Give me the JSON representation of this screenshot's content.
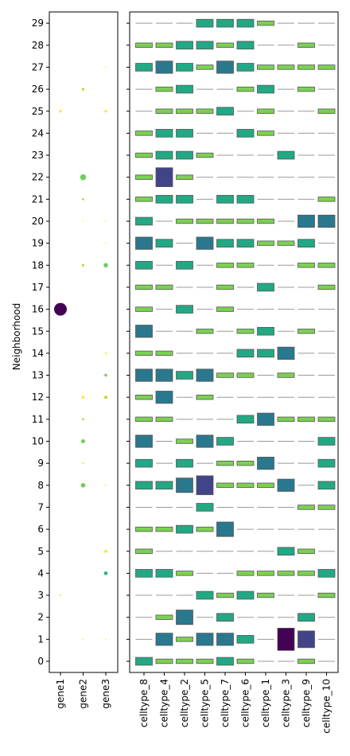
{
  "chart_data": [
    {
      "type": "scatter",
      "panel": "gene dot plot",
      "ylabel": "Neighborhood",
      "xlabel": "",
      "categories_x": [
        "gene1",
        "gene2",
        "gene3"
      ],
      "categories_y": [
        "0",
        "1",
        "2",
        "3",
        "4",
        "5",
        "6",
        "7",
        "8",
        "9",
        "10",
        "11",
        "12",
        "13",
        "14",
        "15",
        "16",
        "17",
        "18",
        "19",
        "20",
        "21",
        "22",
        "23",
        "24",
        "25",
        "26",
        "27",
        "28",
        "29"
      ],
      "points": [
        {
          "x": "gene1",
          "y": "3",
          "size": 0.02,
          "value": 0.05
        },
        {
          "x": "gene1",
          "y": "16",
          "size": 1.0,
          "value": 1.0
        },
        {
          "x": "gene1",
          "y": "25",
          "size": 0.04,
          "value": 0.05
        },
        {
          "x": "gene2",
          "y": "1",
          "size": 0.01,
          "value": 0.05
        },
        {
          "x": "gene2",
          "y": "8",
          "size": 0.12,
          "value": 0.2
        },
        {
          "x": "gene2",
          "y": "9",
          "size": 0.02,
          "value": 0.05
        },
        {
          "x": "gene2",
          "y": "10",
          "size": 0.1,
          "value": 0.2
        },
        {
          "x": "gene2",
          "y": "11",
          "size": 0.03,
          "value": 0.15
        },
        {
          "x": "gene2",
          "y": "12",
          "size": 0.05,
          "value": 0.05
        },
        {
          "x": "gene2",
          "y": "18",
          "size": 0.04,
          "value": 0.15
        },
        {
          "x": "gene2",
          "y": "20",
          "size": 0.01,
          "value": 0.05
        },
        {
          "x": "gene2",
          "y": "21",
          "size": 0.03,
          "value": 0.15
        },
        {
          "x": "gene2",
          "y": "22",
          "size": 0.22,
          "value": 0.25
        },
        {
          "x": "gene2",
          "y": "26",
          "size": 0.04,
          "value": 0.15
        },
        {
          "x": "gene3",
          "y": "1",
          "size": 0.01,
          "value": 0.05
        },
        {
          "x": "gene3",
          "y": "4",
          "size": 0.09,
          "value": 0.35
        },
        {
          "x": "gene3",
          "y": "5",
          "size": 0.06,
          "value": 0.05
        },
        {
          "x": "gene3",
          "y": "8",
          "size": 0.01,
          "value": 0.05
        },
        {
          "x": "gene3",
          "y": "12",
          "size": 0.06,
          "value": 0.15
        },
        {
          "x": "gene3",
          "y": "13",
          "size": 0.05,
          "value": 0.2
        },
        {
          "x": "gene3",
          "y": "14",
          "size": 0.02,
          "value": 0.05
        },
        {
          "x": "gene3",
          "y": "18",
          "size": 0.12,
          "value": 0.2
        },
        {
          "x": "gene3",
          "y": "19",
          "size": 0.01,
          "value": 0.05
        },
        {
          "x": "gene3",
          "y": "20",
          "size": 0.01,
          "value": 0.05
        },
        {
          "x": "gene3",
          "y": "25",
          "size": 0.04,
          "value": 0.05
        },
        {
          "x": "gene3",
          "y": "27",
          "size": 0.01,
          "value": 0.05
        }
      ]
    },
    {
      "type": "heatmap",
      "panel": "celltype rectangle plot",
      "categories_x": [
        "celltype_8",
        "celltype_4",
        "celltype_2",
        "celltype_5",
        "celltype_7",
        "celltype_6",
        "celltype_1",
        "celltype_3",
        "celltype_9",
        "celltype_10"
      ],
      "categories_y": [
        "0",
        "1",
        "2",
        "3",
        "4",
        "5",
        "6",
        "7",
        "8",
        "9",
        "10",
        "11",
        "12",
        "13",
        "14",
        "15",
        "16",
        "17",
        "18",
        "19",
        "20",
        "21",
        "22",
        "23",
        "24",
        "25",
        "26",
        "27",
        "28",
        "29"
      ],
      "level_note": "each cell value = relative height level (0 = flat line, 1 = tallest)",
      "rows": {
        "0": [
          0.35,
          0.2,
          0.2,
          0.2,
          0.35,
          0.2,
          0.0,
          0.0,
          0.2,
          0.0
        ],
        "1": [
          0.0,
          0.55,
          0.2,
          0.55,
          0.55,
          0.35,
          0.0,
          1.0,
          0.75,
          0.0
        ],
        "2": [
          0.0,
          0.2,
          0.65,
          0.0,
          0.35,
          0.0,
          0.0,
          0.0,
          0.35,
          0.0
        ],
        "3": [
          0.0,
          0.0,
          0.0,
          0.35,
          0.2,
          0.35,
          0.2,
          0.0,
          0.0,
          0.2
        ],
        "4": [
          0.35,
          0.35,
          0.2,
          0.0,
          0.0,
          0.2,
          0.2,
          0.2,
          0.2,
          0.35
        ],
        "5": [
          0.2,
          0.0,
          0.0,
          0.0,
          0.0,
          0.0,
          0.0,
          0.35,
          0.2,
          0.0
        ],
        "6": [
          0.2,
          0.2,
          0.35,
          0.2,
          0.65,
          0.0,
          0.0,
          0.0,
          0.0,
          0.0
        ],
        "7": [
          0.0,
          0.0,
          0.0,
          0.35,
          0.0,
          0.0,
          0.0,
          0.0,
          0.2,
          0.2
        ],
        "8": [
          0.35,
          0.35,
          0.65,
          0.85,
          0.2,
          0.2,
          0.2,
          0.55,
          0.0,
          0.35
        ],
        "9": [
          0.35,
          0.0,
          0.35,
          0.0,
          0.2,
          0.2,
          0.55,
          0.0,
          0.0,
          0.35
        ],
        "10": [
          0.55,
          0.0,
          0.2,
          0.55,
          0.35,
          0.0,
          0.0,
          0.0,
          0.0,
          0.35
        ],
        "11": [
          0.2,
          0.2,
          0.0,
          0.0,
          0.0,
          0.35,
          0.55,
          0.2,
          0.2,
          0.2
        ],
        "12": [
          0.2,
          0.55,
          0.0,
          0.2,
          0.0,
          0.0,
          0.0,
          0.0,
          0.0,
          0.0
        ],
        "13": [
          0.55,
          0.55,
          0.35,
          0.55,
          0.2,
          0.2,
          0.0,
          0.2,
          0.0,
          0.0
        ],
        "14": [
          0.2,
          0.2,
          0.0,
          0.0,
          0.0,
          0.35,
          0.35,
          0.55,
          0.0,
          0.0
        ],
        "15": [
          0.55,
          0.0,
          0.0,
          0.2,
          0.0,
          0.2,
          0.35,
          0.0,
          0.2,
          0.0
        ],
        "16": [
          0.2,
          0.0,
          0.35,
          0.0,
          0.2,
          0.0,
          0.0,
          0.0,
          0.0,
          0.0
        ],
        "17": [
          0.2,
          0.2,
          0.0,
          0.0,
          0.2,
          0.0,
          0.35,
          0.0,
          0.0,
          0.2
        ],
        "18": [
          0.35,
          0.0,
          0.35,
          0.0,
          0.2,
          0.2,
          0.0,
          0.0,
          0.2,
          0.2
        ],
        "19": [
          0.55,
          0.35,
          0.0,
          0.55,
          0.35,
          0.35,
          0.2,
          0.2,
          0.35,
          0.0
        ],
        "20": [
          0.35,
          0.0,
          0.2,
          0.2,
          0.2,
          0.2,
          0.2,
          0.0,
          0.55,
          0.55
        ],
        "21": [
          0.2,
          0.35,
          0.35,
          0.0,
          0.35,
          0.35,
          0.0,
          0.0,
          0.0,
          0.2
        ],
        "22": [
          0.2,
          0.85,
          0.2,
          0.0,
          0.0,
          0.0,
          0.0,
          0.0,
          0.0,
          0.0
        ],
        "23": [
          0.2,
          0.35,
          0.35,
          0.2,
          0.0,
          0.0,
          0.0,
          0.35,
          0.0,
          0.0
        ],
        "24": [
          0.2,
          0.35,
          0.35,
          0.0,
          0.0,
          0.35,
          0.2,
          0.0,
          0.0,
          0.0
        ],
        "25": [
          0.0,
          0.2,
          0.2,
          0.2,
          0.35,
          0.0,
          0.2,
          0.0,
          0.0,
          0.2
        ],
        "26": [
          0.0,
          0.2,
          0.35,
          0.0,
          0.0,
          0.2,
          0.35,
          0.0,
          0.2,
          0.0
        ],
        "27": [
          0.35,
          0.55,
          0.35,
          0.2,
          0.55,
          0.35,
          0.2,
          0.2,
          0.2,
          0.2
        ],
        "28": [
          0.2,
          0.2,
          0.35,
          0.35,
          0.2,
          0.35,
          0.0,
          0.0,
          0.2,
          0.0
        ],
        "29": [
          0.0,
          0.0,
          0.0,
          0.35,
          0.35,
          0.35,
          0.2,
          0.0,
          0.0,
          0.0
        ]
      },
      "colors": {
        "level_0.2": "#7ad151",
        "level_0.35": "#22a884",
        "level_0.55": "#2a788e",
        "level_0.65": "#2a788e",
        "level_0.75": "#414487",
        "level_0.85": "#414487",
        "level_1.0": "#440154",
        "flat_line": "#999999",
        "edge": "#555555"
      }
    }
  ]
}
